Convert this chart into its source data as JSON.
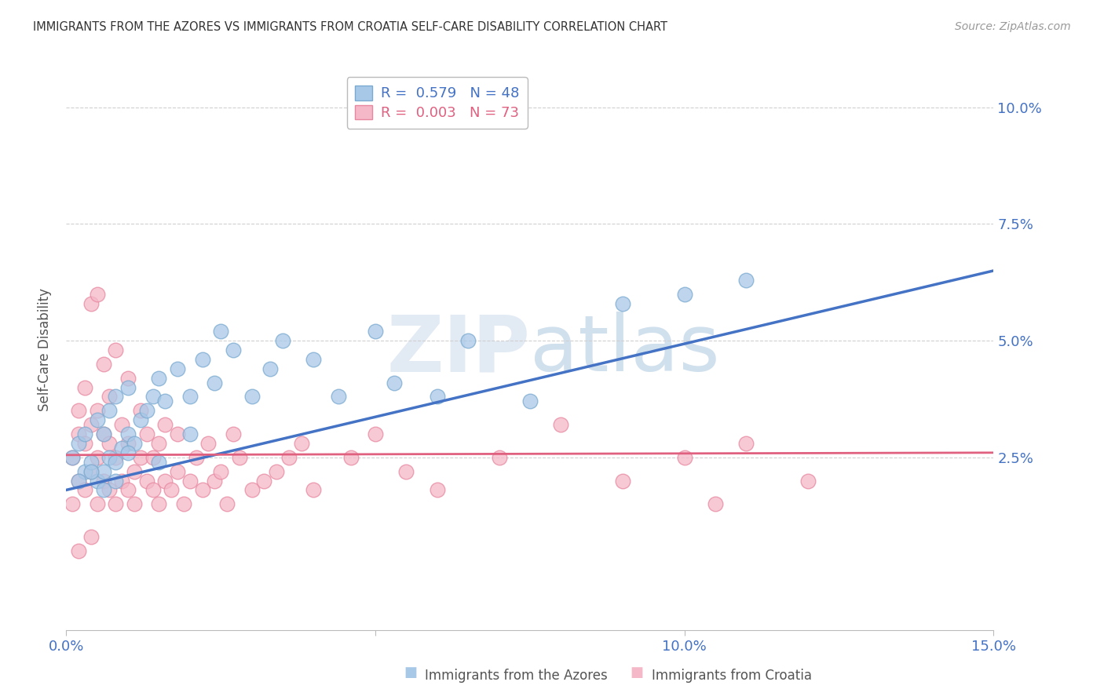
{
  "title": "IMMIGRANTS FROM THE AZORES VS IMMIGRANTS FROM CROATIA SELF-CARE DISABILITY CORRELATION CHART",
  "source": "Source: ZipAtlas.com",
  "ylabel": "Self-Care Disability",
  "xlim": [
    0,
    0.15
  ],
  "ylim": [
    -0.012,
    0.108
  ],
  "yticks": [
    0.025,
    0.05,
    0.075,
    0.1
  ],
  "ytick_labels": [
    "2.5%",
    "5.0%",
    "7.5%",
    "10.0%"
  ],
  "xticks": [
    0.0,
    0.05,
    0.1,
    0.15
  ],
  "xtick_labels": [
    "0.0%",
    "",
    "10.0%",
    "15.0%"
  ],
  "azores_color": "#a8c8e8",
  "croatia_color": "#f4b8c8",
  "azores_edge_color": "#7aaad0",
  "croatia_edge_color": "#e888a0",
  "azores_line_color": "#4472c4",
  "croatia_line_color": "#e06080",
  "legend_azores": "R =  0.579   N = 48",
  "legend_croatia": "R =  0.003   N = 73",
  "legend_label_azores": "Immigrants from the Azores",
  "legend_label_croatia": "Immigrants from Croatia",
  "watermark": "ZIPatlas",
  "background_color": "#ffffff",
  "grid_color": "#d0d0d0",
  "title_color": "#333333",
  "axis_label_color": "#555555",
  "tick_label_color": "#4472c4",
  "azores_scatter": {
    "x": [
      0.001,
      0.002,
      0.003,
      0.003,
      0.004,
      0.005,
      0.005,
      0.006,
      0.006,
      0.007,
      0.007,
      0.008,
      0.008,
      0.009,
      0.01,
      0.01,
      0.011,
      0.012,
      0.013,
      0.014,
      0.015,
      0.016,
      0.018,
      0.02,
      0.022,
      0.024,
      0.027,
      0.03,
      0.033,
      0.035,
      0.04,
      0.044,
      0.05,
      0.053,
      0.06,
      0.065,
      0.075,
      0.09,
      0.1,
      0.11,
      0.002,
      0.004,
      0.006,
      0.008,
      0.01,
      0.015,
      0.02,
      0.025
    ],
    "y": [
      0.025,
      0.028,
      0.022,
      0.03,
      0.024,
      0.02,
      0.033,
      0.022,
      0.03,
      0.025,
      0.035,
      0.024,
      0.038,
      0.027,
      0.03,
      0.04,
      0.028,
      0.033,
      0.035,
      0.038,
      0.042,
      0.037,
      0.044,
      0.038,
      0.046,
      0.041,
      0.048,
      0.038,
      0.044,
      0.05,
      0.046,
      0.038,
      0.052,
      0.041,
      0.038,
      0.05,
      0.037,
      0.058,
      0.06,
      0.063,
      0.02,
      0.022,
      0.018,
      0.02,
      0.026,
      0.024,
      0.03,
      0.052
    ]
  },
  "croatia_scatter": {
    "x": [
      0.001,
      0.001,
      0.002,
      0.002,
      0.002,
      0.003,
      0.003,
      0.003,
      0.004,
      0.004,
      0.004,
      0.005,
      0.005,
      0.005,
      0.005,
      0.006,
      0.006,
      0.006,
      0.007,
      0.007,
      0.007,
      0.008,
      0.008,
      0.008,
      0.009,
      0.009,
      0.01,
      0.01,
      0.01,
      0.011,
      0.011,
      0.012,
      0.012,
      0.013,
      0.013,
      0.014,
      0.014,
      0.015,
      0.015,
      0.016,
      0.016,
      0.017,
      0.018,
      0.018,
      0.019,
      0.02,
      0.021,
      0.022,
      0.023,
      0.024,
      0.025,
      0.026,
      0.027,
      0.028,
      0.03,
      0.032,
      0.034,
      0.036,
      0.038,
      0.04,
      0.046,
      0.05,
      0.055,
      0.06,
      0.07,
      0.08,
      0.09,
      0.1,
      0.105,
      0.11,
      0.12,
      0.002,
      0.004
    ],
    "y": [
      0.025,
      0.015,
      0.03,
      0.02,
      0.035,
      0.018,
      0.028,
      0.04,
      0.022,
      0.032,
      0.058,
      0.015,
      0.025,
      0.035,
      0.06,
      0.02,
      0.03,
      0.045,
      0.018,
      0.028,
      0.038,
      0.015,
      0.025,
      0.048,
      0.02,
      0.032,
      0.018,
      0.028,
      0.042,
      0.022,
      0.015,
      0.025,
      0.035,
      0.02,
      0.03,
      0.018,
      0.025,
      0.015,
      0.028,
      0.02,
      0.032,
      0.018,
      0.022,
      0.03,
      0.015,
      0.02,
      0.025,
      0.018,
      0.028,
      0.02,
      0.022,
      0.015,
      0.03,
      0.025,
      0.018,
      0.02,
      0.022,
      0.025,
      0.028,
      0.018,
      0.025,
      0.03,
      0.022,
      0.018,
      0.025,
      0.032,
      0.02,
      0.025,
      0.015,
      0.028,
      0.02,
      0.005,
      0.008
    ]
  },
  "azores_reg_line": {
    "x0": 0.0,
    "y0": 0.018,
    "x1": 0.15,
    "y1": 0.065
  },
  "croatia_reg_line": {
    "x0": 0.0,
    "y0": 0.0255,
    "x1": 0.15,
    "y1": 0.026
  }
}
